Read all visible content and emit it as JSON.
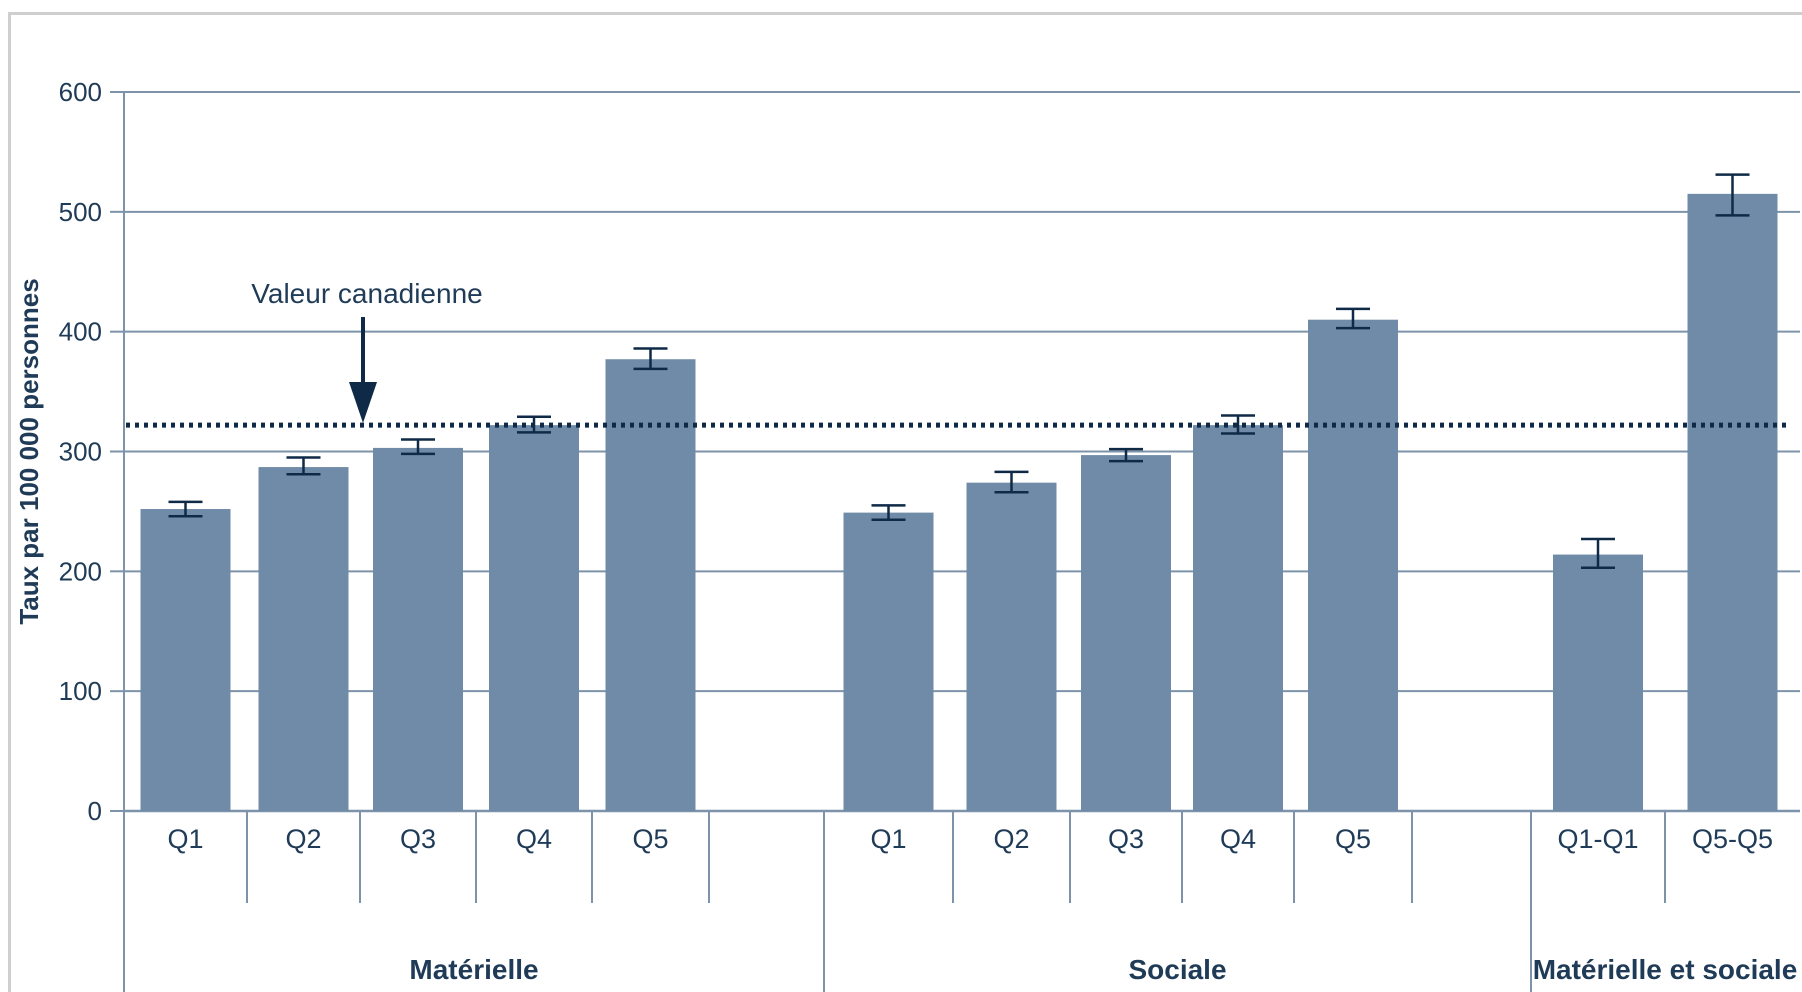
{
  "chart_data": {
    "type": "bar",
    "ylabel": "Taux par 100 000 personnes",
    "ylim": [
      0,
      600
    ],
    "yticks": [
      0,
      100,
      200,
      300,
      400,
      500,
      600
    ],
    "grid": true,
    "colors": {
      "bar": "#708ba8",
      "grid": "#7d93aa",
      "text": "#1f3b57",
      "reference": "#0f2a47"
    },
    "reference_line": {
      "value": 322,
      "label": "Valeur canadienne"
    },
    "groups": [
      {
        "name": "Matérielle",
        "categories": [
          "Q1",
          "Q2",
          "Q3",
          "Q4",
          "Q5"
        ],
        "values": [
          252,
          287,
          303,
          322,
          377
        ],
        "error_low": [
          246,
          281,
          298,
          316,
          369
        ],
        "error_high": [
          258,
          295,
          310,
          329,
          386
        ]
      },
      {
        "name": "Sociale",
        "categories": [
          "Q1",
          "Q2",
          "Q3",
          "Q4",
          "Q5"
        ],
        "values": [
          249,
          274,
          297,
          322,
          410
        ],
        "error_low": [
          243,
          266,
          292,
          315,
          403
        ],
        "error_high": [
          255,
          283,
          302,
          330,
          419
        ]
      },
      {
        "name": "Matérielle et sociale",
        "categories": [
          "Q1-Q1",
          "Q5-Q5"
        ],
        "values": [
          214,
          515
        ],
        "error_low": [
          203,
          497
        ],
        "error_high": [
          227,
          531
        ]
      }
    ]
  }
}
